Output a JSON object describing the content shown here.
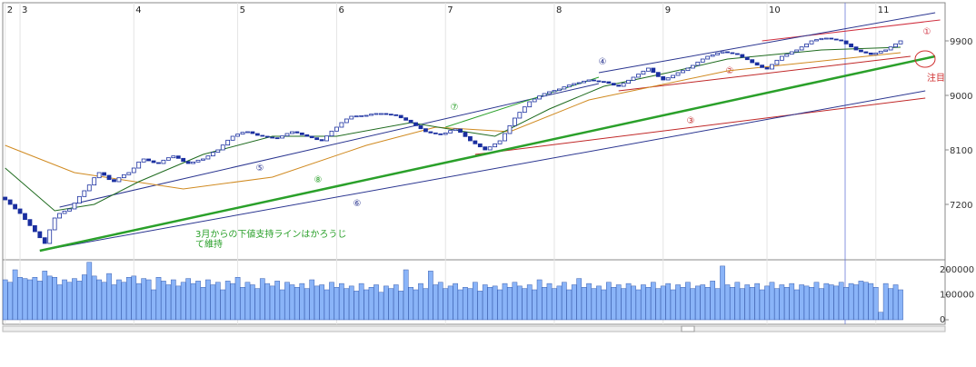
{
  "chart_data": [
    {
      "type": "candlestick",
      "xlim": [
        -0.5,
        190
      ],
      "ylim": [
        6300,
        10500
      ],
      "xticks": [
        {
          "value": 0,
          "label": "2"
        },
        {
          "value": 3,
          "label": "3"
        },
        {
          "value": 26,
          "label": "4"
        },
        {
          "value": 47,
          "label": "5"
        },
        {
          "value": 67,
          "label": "6"
        },
        {
          "value": 89,
          "label": "7"
        },
        {
          "value": 111,
          "label": "8"
        },
        {
          "value": 133,
          "label": "9"
        },
        {
          "value": 154,
          "label": "10"
        },
        {
          "value": 176,
          "label": "11"
        }
      ],
      "yticks": [
        7200,
        8100,
        9000,
        9900
      ],
      "up_color": "#ffffff",
      "down_color": "#1a2fa0",
      "edge_color": "#1a2fa0",
      "open": [
        7320,
        7275,
        7200,
        7125,
        7050,
        6950,
        6850,
        6750,
        6650,
        6555,
        6780,
        6975,
        7050,
        7090,
        7125,
        7220,
        7330,
        7425,
        7520,
        7640,
        7725,
        7680,
        7610,
        7575,
        7640,
        7690,
        7725,
        7800,
        7900,
        7950,
        7920,
        7890,
        7875,
        7930,
        7970,
        8000,
        7960,
        7910,
        7875,
        7900,
        7930,
        7950,
        8000,
        8060,
        8100,
        8180,
        8260,
        8325,
        8360,
        8390,
        8400,
        8370,
        8340,
        8325,
        8310,
        8300,
        8295,
        8330,
        8370,
        8400,
        8380,
        8350,
        8325,
        8300,
        8270,
        8250,
        8330,
        8410,
        8475,
        8550,
        8610,
        8655,
        8660,
        8665,
        8670,
        8690,
        8700,
        8700,
        8690,
        8680,
        8670,
        8630,
        8590,
        8550,
        8500,
        8450,
        8400,
        8380,
        8365,
        8355,
        8380,
        8420,
        8445,
        8390,
        8320,
        8250,
        8200,
        8150,
        8100,
        8150,
        8200,
        8250,
        8370,
        8500,
        8625,
        8720,
        8810,
        8895,
        8940,
        8990,
        9030,
        9060,
        9080,
        9105,
        9140,
        9170,
        9195,
        9210,
        9235,
        9255,
        9240,
        9230,
        9225,
        9200,
        9170,
        9150,
        9200,
        9250,
        9300,
        9350,
        9400,
        9450,
        9380,
        9310,
        9255,
        9290,
        9330,
        9375,
        9410,
        9450,
        9495,
        9550,
        9600,
        9645,
        9670,
        9700,
        9720,
        9705,
        9690,
        9675,
        9630,
        9590,
        9540,
        9500,
        9460,
        9435,
        9510,
        9580,
        9645,
        9680,
        9720,
        9750,
        9800,
        9850,
        9900,
        9920,
        9940,
        9945,
        9930,
        9915,
        9900,
        9850,
        9800,
        9750,
        9720,
        9700,
        9675,
        9700,
        9730,
        9750,
        9800,
        9850
      ],
      "close": [
        7275,
        7200,
        7125,
        7050,
        6950,
        6850,
        6750,
        6650,
        6555,
        6780,
        6975,
        7050,
        7090,
        7125,
        7220,
        7330,
        7425,
        7520,
        7640,
        7725,
        7680,
        7610,
        7575,
        7640,
        7690,
        7725,
        7800,
        7900,
        7950,
        7920,
        7890,
        7875,
        7930,
        7970,
        8000,
        7960,
        7910,
        7875,
        7900,
        7930,
        7950,
        8000,
        8060,
        8100,
        8180,
        8260,
        8325,
        8360,
        8390,
        8400,
        8370,
        8340,
        8325,
        8310,
        8300,
        8295,
        8330,
        8370,
        8400,
        8380,
        8350,
        8325,
        8300,
        8270,
        8250,
        8330,
        8410,
        8475,
        8550,
        8610,
        8655,
        8660,
        8665,
        8670,
        8690,
        8700,
        8700,
        8690,
        8680,
        8670,
        8630,
        8590,
        8550,
        8500,
        8450,
        8400,
        8380,
        8365,
        8355,
        8380,
        8420,
        8445,
        8390,
        8320,
        8250,
        8200,
        8150,
        8100,
        8150,
        8200,
        8250,
        8370,
        8500,
        8625,
        8720,
        8810,
        8895,
        8940,
        8990,
        9030,
        9060,
        9080,
        9105,
        9140,
        9170,
        9195,
        9210,
        9235,
        9255,
        9240,
        9230,
        9225,
        9200,
        9170,
        9150,
        9200,
        9250,
        9300,
        9350,
        9400,
        9450,
        9380,
        9310,
        9255,
        9290,
        9330,
        9375,
        9410,
        9450,
        9495,
        9550,
        9600,
        9645,
        9670,
        9700,
        9720,
        9705,
        9690,
        9675,
        9630,
        9590,
        9540,
        9500,
        9460,
        9435,
        9510,
        9580,
        9645,
        9680,
        9720,
        9750,
        9800,
        9850,
        9900,
        9920,
        9940,
        9945,
        9930,
        9915,
        9900,
        9850,
        9800,
        9750,
        9720,
        9700,
        9675,
        9700,
        9730,
        9750,
        9800,
        9850,
        9900
      ],
      "series": [
        {
          "color": "#d08a20",
          "x": [
            0,
            14,
            36,
            54,
            73,
            87,
            102,
            118,
            146,
            181
          ],
          "values": [
            8175,
            7725,
            7455,
            7650,
            8175,
            8475,
            8400,
            8925,
            9405,
            9705
          ]
        },
        {
          "color": "#1f6b1f",
          "x": [
            0,
            10,
            18,
            27,
            40,
            54,
            67,
            82,
            93,
            99,
            110,
            121,
            134,
            146,
            165,
            181
          ],
          "values": [
            7800,
            7095,
            7200,
            7575,
            8025,
            8325,
            8325,
            8550,
            8400,
            8325,
            8775,
            9150,
            9375,
            9600,
            9750,
            9795
          ]
        }
      ],
      "trendlines": [
        {
          "label": "①",
          "color": "#d03040",
          "x": [
            153,
            189
          ],
          "values": [
            9900,
            10245
          ]
        },
        {
          "label": "②",
          "color": "#c02828",
          "x": [
            124,
            183
          ],
          "values": [
            9075,
            9645
          ]
        },
        {
          "label": "③",
          "color": "#c02828",
          "x": [
            95,
            186
          ],
          "values": [
            8025,
            8955
          ]
        },
        {
          "label": "④",
          "color": "#2a3590",
          "x": [
            120,
            188
          ],
          "values": [
            9375,
            10365
          ]
        },
        {
          "label": "⑤",
          "color": "#2a3590",
          "x": [
            11,
            120
          ],
          "values": [
            7155,
            9195
          ]
        },
        {
          "label": "⑥",
          "color": "#2a3590",
          "x": [
            7,
            186
          ],
          "values": [
            6435,
            9075
          ]
        },
        {
          "label": "⑦",
          "color": "#2aa02a",
          "x": [
            89,
            120
          ],
          "values": [
            8475,
            9300
          ]
        },
        {
          "label": "⑧",
          "color": "#2aa02a",
          "x": [
            7,
            188
          ],
          "values": [
            6435,
            9645
          ]
        }
      ],
      "note": [
        "3月からの下値支持ラインはかろうじ",
        "て維持"
      ],
      "callout": "注目"
    },
    {
      "type": "bar",
      "xlim": [
        -0.5,
        190
      ],
      "ylim": [
        0,
        240000
      ],
      "yticks": [
        0,
        100000,
        200000
      ],
      "color": "#8ab4f8",
      "edge_color": "#3a5fb0",
      "values": [
        160000,
        150000,
        200000,
        170000,
        165000,
        160000,
        170000,
        155000,
        195000,
        175000,
        170000,
        140000,
        160000,
        150000,
        165000,
        155000,
        180000,
        230000,
        175000,
        160000,
        150000,
        185000,
        140000,
        160000,
        150000,
        170000,
        175000,
        145000,
        165000,
        160000,
        120000,
        170000,
        155000,
        140000,
        160000,
        135000,
        150000,
        165000,
        145000,
        155000,
        130000,
        160000,
        140000,
        150000,
        120000,
        155000,
        145000,
        170000,
        130000,
        150000,
        140000,
        125000,
        165000,
        145000,
        135000,
        155000,
        120000,
        150000,
        140000,
        130000,
        145000,
        125000,
        160000,
        135000,
        140000,
        120000,
        150000,
        130000,
        145000,
        125000,
        135000,
        115000,
        145000,
        120000,
        130000,
        140000,
        110000,
        135000,
        125000,
        140000,
        115000,
        200000,
        130000,
        120000,
        145000,
        125000,
        195000,
        140000,
        150000,
        125000,
        135000,
        145000,
        120000,
        130000,
        125000,
        150000,
        115000,
        140000,
        130000,
        135000,
        120000,
        145000,
        130000,
        150000,
        135000,
        125000,
        140000,
        120000,
        160000,
        130000,
        145000,
        125000,
        135000,
        150000,
        120000,
        140000,
        165000,
        130000,
        145000,
        125000,
        135000,
        120000,
        150000,
        130000,
        140000,
        125000,
        145000,
        135000,
        120000,
        140000,
        130000,
        150000,
        125000,
        135000,
        145000,
        120000,
        140000,
        130000,
        150000,
        125000,
        135000,
        140000,
        130000,
        155000,
        125000,
        215000,
        140000,
        130000,
        150000,
        125000,
        140000,
        130000,
        145000,
        120000,
        135000,
        150000,
        125000,
        140000,
        130000,
        145000,
        120000,
        140000,
        135000,
        130000,
        150000,
        125000,
        145000,
        140000,
        135000,
        150000,
        130000,
        145000,
        140000,
        155000,
        150000,
        145000,
        130000,
        30000,
        145000,
        125000,
        140000,
        120000
      ]
    }
  ]
}
